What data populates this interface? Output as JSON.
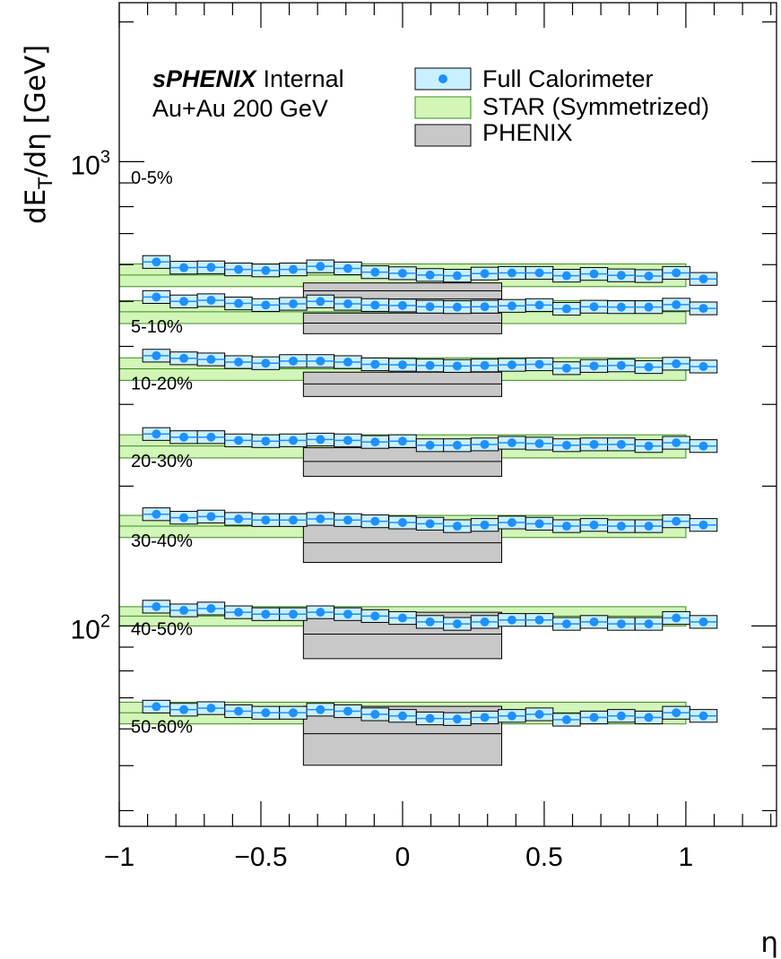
{
  "chart_data": {
    "type": "scatter",
    "xlabel": "η",
    "ylabel": "dE_T/dη [GeV]",
    "ylabel_main": "dE",
    "ylabel_sub": "T",
    "ylabel_rest": "/dη [GeV]",
    "xlim": [
      -1.0,
      1.32
    ],
    "ylim": [
      37,
      2200
    ],
    "yscale": "log",
    "x_tick_labels": [
      {
        "value": -1,
        "label": "−1"
      },
      {
        "value": -0.5,
        "label": "−0.5"
      },
      {
        "value": 0,
        "label": "0"
      },
      {
        "value": 0.5,
        "label": "0.5"
      },
      {
        "value": 1,
        "label": "1"
      }
    ],
    "y_tick_labels": [
      {
        "value": 100,
        "base": "10",
        "exp": "2"
      },
      {
        "value": 1000,
        "base": "10",
        "exp": "3"
      }
    ],
    "annotation": {
      "bold": "sPHENIX",
      "normal": "Internal",
      "line2": "Au+Au 200 GeV"
    },
    "legend": {
      "position": "top-right",
      "entries": [
        "Full Calorimeter",
        "STAR (Symmetrized)",
        "PHENIX"
      ]
    },
    "colors": {
      "marker": "#1e90ff",
      "box_fill": "#c8f0ff",
      "star_fill": "#d2f5b8",
      "star_edge": "#3a8c1e",
      "phenix_fill": "#c8c8c8"
    },
    "eta_bins": [
      -0.869,
      -0.772,
      -0.676,
      -0.579,
      -0.483,
      -0.386,
      -0.29,
      -0.193,
      -0.097,
      0.0,
      0.097,
      0.193,
      0.29,
      0.386,
      0.483,
      0.579,
      0.676,
      0.772,
      0.869,
      0.966,
      1.062
    ],
    "eta_halfwidth": 0.0483,
    "series": [
      {
        "name": "0-5%",
        "label": "0-5%",
        "values": [
          608,
          591,
          592,
          586,
          583,
          586,
          595,
          589,
          578,
          575,
          570,
          568,
          574,
          576,
          576,
          568,
          573,
          569,
          567,
          576,
          559
        ],
        "star": [
          570,
          32
        ],
        "phenix": [
          527,
          21
        ]
      },
      {
        "name": "5-10%",
        "label": "5-10%",
        "values": [
          511,
          500,
          503,
          495,
          491,
          494,
          500,
          494,
          491,
          490,
          487,
          486,
          487,
          489,
          491,
          482,
          487,
          486,
          486,
          492,
          483
        ],
        "star": [
          475,
          27
        ],
        "phenix": [
          449,
          23
        ]
      },
      {
        "name": "10-20%",
        "label": "10-20%",
        "values": [
          382,
          377,
          375,
          370,
          368,
          372,
          372,
          370,
          366,
          365,
          364,
          363,
          364,
          365,
          366,
          359,
          363,
          364,
          361,
          367,
          362
        ],
        "star": [
          358,
          20
        ],
        "phenix": [
          332,
          20
        ]
      },
      {
        "name": "20-30%",
        "label": "20-30%",
        "values": [
          259,
          255,
          255,
          251,
          250,
          251,
          252,
          251,
          249,
          250,
          245,
          245,
          246,
          248,
          247,
          245,
          246,
          246,
          244,
          248,
          244
        ],
        "star": [
          244,
          14
        ],
        "phenix": [
          226,
          16
        ]
      },
      {
        "name": "30-40%",
        "label": "30-40%",
        "values": [
          174,
          171,
          172,
          170,
          169,
          169,
          170,
          169,
          168,
          167,
          166,
          164,
          165,
          167,
          166,
          164,
          165,
          164,
          164,
          168,
          165
        ],
        "star": [
          164,
          9
        ],
        "phenix": [
          151,
          14
        ]
      },
      {
        "name": "40-50%",
        "label": "40-50%",
        "values": [
          110,
          108,
          109,
          107,
          106,
          106,
          107,
          106,
          105,
          104,
          102,
          101,
          102,
          103,
          103,
          101,
          102,
          101,
          101,
          104,
          102
        ],
        "star": [
          105,
          5
        ],
        "phenix": [
          96,
          11
        ]
      },
      {
        "name": "50-60%",
        "label": "50-60%",
        "values": [
          67,
          66,
          66.5,
          65.5,
          65,
          65,
          66,
          65.5,
          64.5,
          64,
          63.2,
          63,
          63.5,
          64,
          64.5,
          62.8,
          63.5,
          64,
          63.5,
          65,
          64
        ],
        "star": [
          65,
          3.5
        ],
        "phenix": [
          58.6,
          8.5
        ]
      }
    ]
  }
}
